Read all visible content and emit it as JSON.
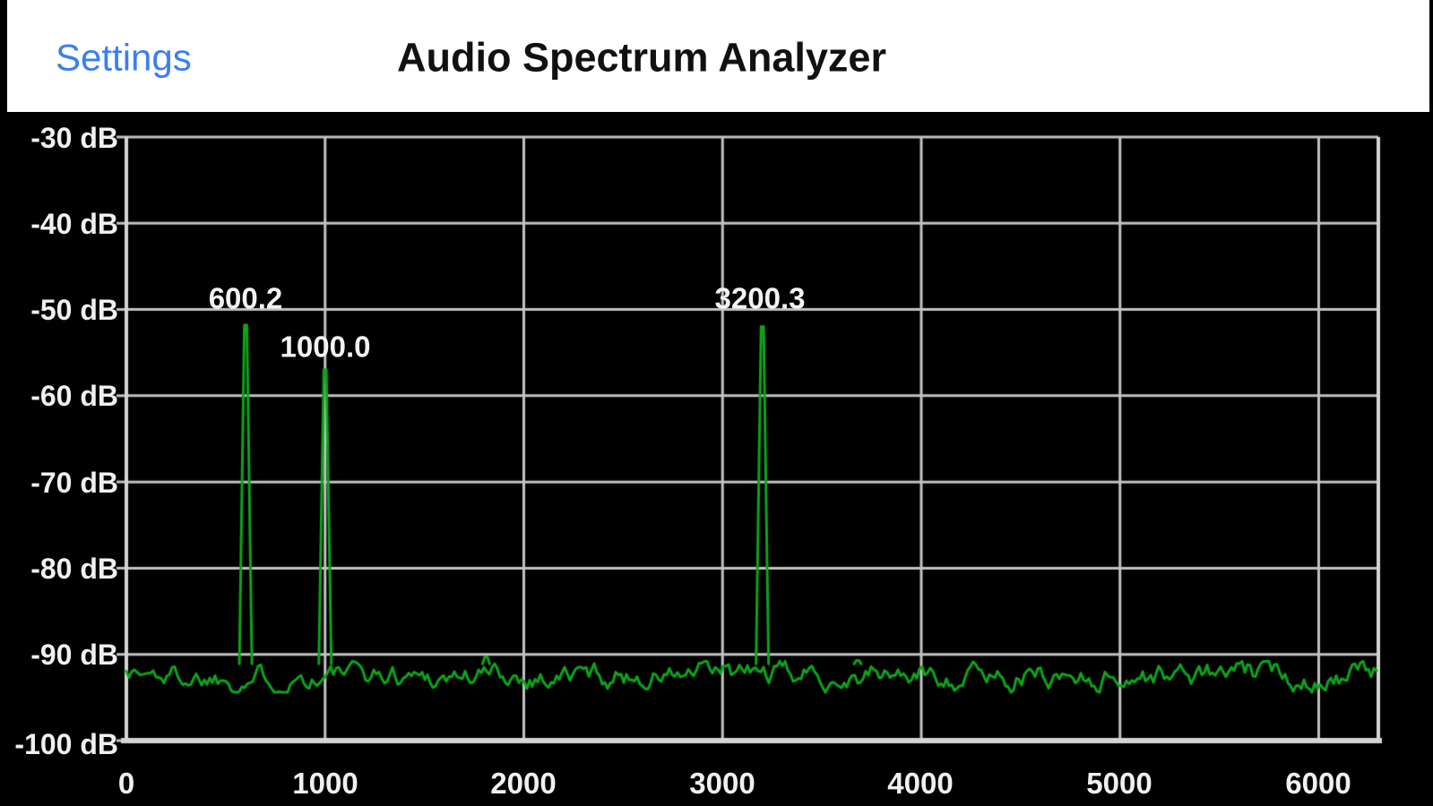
{
  "header": {
    "settings_label": "Settings",
    "title": "Audio Spectrum Analyzer"
  },
  "chart_data": {
    "type": "line",
    "title": "Audio Spectrum Analyzer",
    "x_axis": {
      "range": [
        0,
        6300
      ],
      "tick_values": [
        0,
        1000,
        2000,
        3000,
        4000,
        5000,
        6000
      ],
      "tick_labels": [
        "0",
        "1000",
        "2000",
        "3000",
        "4000",
        "5000",
        "6000"
      ],
      "grid": true
    },
    "y_axis": {
      "range": [
        -100,
        -30
      ],
      "tick_values": [
        -30,
        -40,
        -50,
        -60,
        -70,
        -80,
        -90,
        -100
      ],
      "tick_labels": [
        "-30 dB",
        "-40 dB",
        "-50 dB",
        "-60 dB",
        "-70 dB",
        "-80 dB",
        "-90 dB",
        "-100 dB"
      ],
      "grid": true
    },
    "series": [
      {
        "name": "spectrum-trace",
        "color": "#0ca41a",
        "noise_floor_db": -92.4,
        "noise_peak_to_peak_db": 3.2
      }
    ],
    "peaks": [
      {
        "label": "600.2",
        "frequency_hz": 600.2,
        "level_db": -51.8
      },
      {
        "label": "1000.0",
        "frequency_hz": 1000.0,
        "level_db": -57.0
      },
      {
        "label": "3200.3",
        "frequency_hz": 3200.3,
        "level_db": -52.0
      }
    ],
    "minor_bumps": [
      {
        "frequency_hz": 1810,
        "level_db": -90.3
      },
      {
        "frequency_hz": 3680,
        "level_db": -90.7
      }
    ],
    "colors": {
      "background": "#000000",
      "grid": "#c2c2c2",
      "axis": "#d4d4d4",
      "tick_text": "#f0f0f0",
      "trace": "#0ca41a",
      "header_bg": "#ffffff",
      "settings_blue": "#3b7ef2",
      "title_text": "#111111"
    }
  }
}
